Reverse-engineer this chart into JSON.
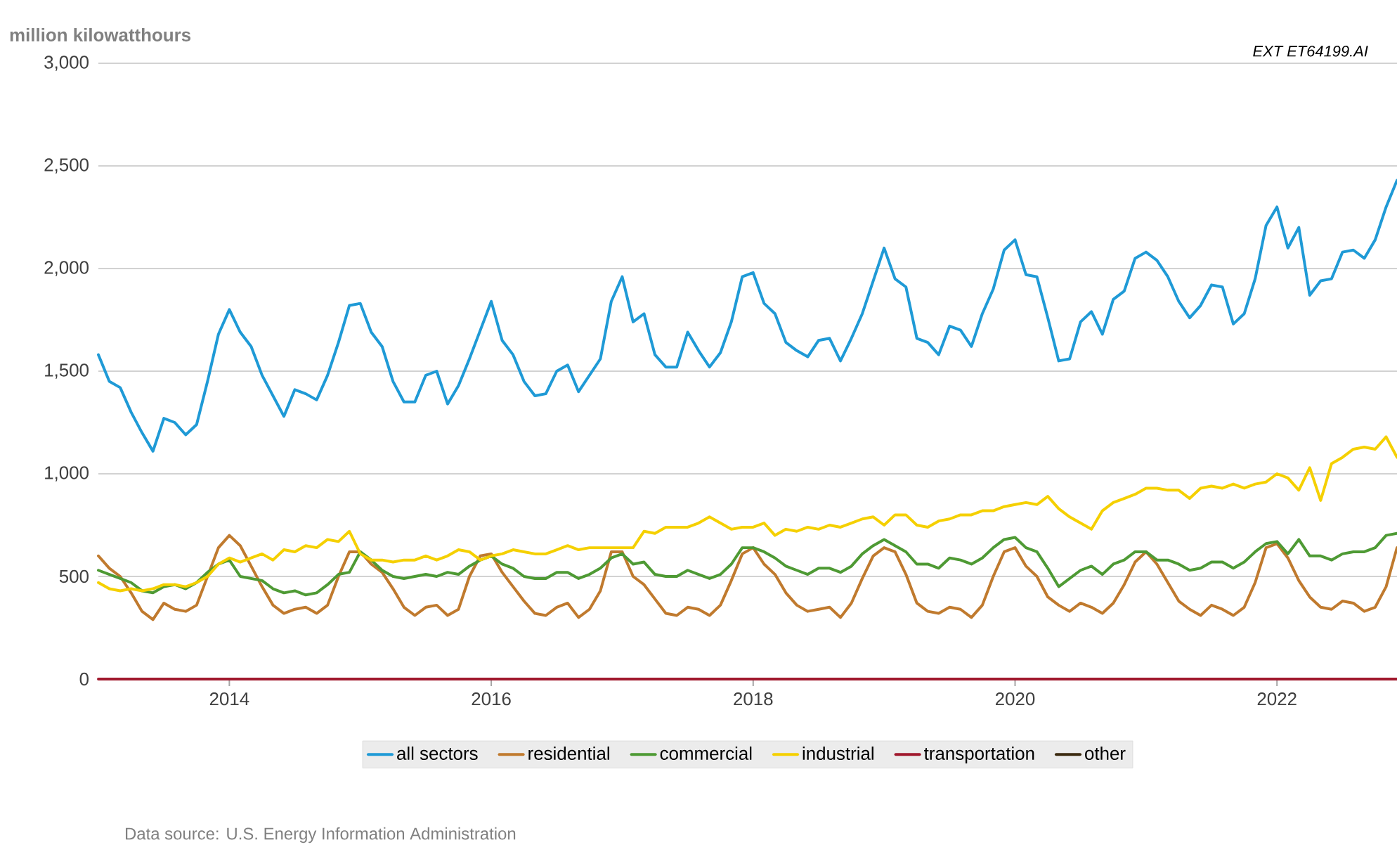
{
  "chart_data": {
    "type": "line",
    "ylabel": "million kilowatthours",
    "annotations": [
      "EXT ET64199.AI",
      "Data source: U.S. Energy Information Administration"
    ],
    "x": [
      "2013-01",
      "2013-02",
      "2013-03",
      "2013-04",
      "2013-05",
      "2013-06",
      "2013-07",
      "2013-08",
      "2013-09",
      "2013-10",
      "2013-11",
      "2013-12",
      "2014-01",
      "2014-02",
      "2014-03",
      "2014-04",
      "2014-05",
      "2014-06",
      "2014-07",
      "2014-08",
      "2014-09",
      "2014-10",
      "2014-11",
      "2014-12",
      "2015-01",
      "2015-02",
      "2015-03",
      "2015-04",
      "2015-05",
      "2015-06",
      "2015-07",
      "2015-08",
      "2015-09",
      "2015-10",
      "2015-11",
      "2015-12",
      "2016-01",
      "2016-02",
      "2016-03",
      "2016-04",
      "2016-05",
      "2016-06",
      "2016-07",
      "2016-08",
      "2016-09",
      "2016-10",
      "2016-11",
      "2016-12",
      "2017-01",
      "2017-02",
      "2017-03",
      "2017-04",
      "2017-05",
      "2017-06",
      "2017-07",
      "2017-08",
      "2017-09",
      "2017-10",
      "2017-11",
      "2017-12",
      "2018-01",
      "2018-02",
      "2018-03",
      "2018-04",
      "2018-05",
      "2018-06",
      "2018-07",
      "2018-08",
      "2018-09",
      "2018-10",
      "2018-11",
      "2018-12",
      "2019-01",
      "2019-02",
      "2019-03",
      "2019-04",
      "2019-05",
      "2019-06",
      "2019-07",
      "2019-08",
      "2019-09",
      "2019-10",
      "2019-11",
      "2019-12",
      "2020-01",
      "2020-02",
      "2020-03",
      "2020-04",
      "2020-05",
      "2020-06",
      "2020-07",
      "2020-08",
      "2020-09",
      "2020-10",
      "2020-11",
      "2020-12",
      "2021-01",
      "2021-02",
      "2021-03",
      "2021-04",
      "2021-05",
      "2021-06",
      "2021-07",
      "2021-08",
      "2021-09",
      "2021-10",
      "2021-11",
      "2021-12",
      "2022-01",
      "2022-02",
      "2022-03",
      "2022-04",
      "2022-05",
      "2022-06",
      "2022-07",
      "2022-08",
      "2022-09",
      "2022-10",
      "2022-11",
      "2022-12"
    ],
    "series": [
      {
        "name": "all sectors",
        "color": "#1f9ad6",
        "values": [
          1580,
          1450,
          1420,
          1300,
          1200,
          1110,
          1270,
          1250,
          1190,
          1240,
          1450,
          1680,
          1800,
          1690,
          1620,
          1480,
          1380,
          1280,
          1410,
          1390,
          1360,
          1480,
          1640,
          1820,
          1830,
          1690,
          1620,
          1450,
          1350,
          1350,
          1480,
          1500,
          1340,
          1430,
          1560,
          1700,
          1840,
          1650,
          1580,
          1450,
          1380,
          1390,
          1500,
          1530,
          1400,
          1480,
          1560,
          1840,
          1960,
          1740,
          1780,
          1580,
          1520,
          1520,
          1690,
          1600,
          1520,
          1590,
          1740,
          1960,
          1980,
          1830,
          1780,
          1640,
          1600,
          1570,
          1650,
          1660,
          1550,
          1660,
          1780,
          1940,
          2100,
          1950,
          1910,
          1660,
          1640,
          1580,
          1720,
          1700,
          1620,
          1780,
          1900,
          2090,
          2140,
          1970,
          1960,
          1760,
          1550,
          1560,
          1740,
          1790,
          1680,
          1850,
          1890,
          2050,
          2080,
          2040,
          1960,
          1840,
          1760,
          1820,
          1920,
          1910,
          1730,
          1780,
          1950,
          2210,
          2300,
          2100,
          2200,
          1870,
          1940,
          1950,
          2080,
          2090,
          2050,
          2140,
          2300,
          2430
        ]
      },
      {
        "name": "residential",
        "color": "#c07a2e",
        "values": [
          600,
          540,
          500,
          420,
          330,
          290,
          370,
          340,
          330,
          360,
          500,
          640,
          700,
          650,
          550,
          450,
          360,
          320,
          340,
          350,
          320,
          360,
          500,
          620,
          620,
          560,
          520,
          440,
          350,
          310,
          350,
          360,
          310,
          340,
          500,
          600,
          610,
          520,
          450,
          380,
          320,
          310,
          350,
          370,
          300,
          340,
          430,
          620,
          620,
          500,
          460,
          390,
          320,
          310,
          350,
          340,
          310,
          360,
          480,
          610,
          640,
          560,
          510,
          420,
          360,
          330,
          340,
          350,
          300,
          370,
          490,
          600,
          640,
          620,
          510,
          370,
          330,
          320,
          350,
          340,
          300,
          360,
          500,
          620,
          640,
          550,
          500,
          400,
          360,
          330,
          370,
          350,
          320,
          370,
          460,
          570,
          620,
          560,
          470,
          380,
          340,
          310,
          360,
          340,
          310,
          350,
          470,
          640,
          660,
          590,
          480,
          400,
          350,
          340,
          380,
          370,
          330,
          350,
          450,
          640
        ]
      },
      {
        "name": "commercial",
        "color": "#4e9a34",
        "values": [
          530,
          510,
          490,
          470,
          430,
          420,
          450,
          460,
          440,
          470,
          520,
          560,
          580,
          500,
          490,
          480,
          440,
          420,
          430,
          410,
          420,
          460,
          510,
          520,
          620,
          580,
          530,
          500,
          490,
          500,
          510,
          500,
          520,
          510,
          550,
          580,
          600,
          560,
          540,
          500,
          490,
          490,
          520,
          520,
          490,
          510,
          540,
          590,
          610,
          560,
          570,
          510,
          500,
          500,
          530,
          510,
          490,
          510,
          560,
          640,
          640,
          620,
          590,
          550,
          530,
          510,
          540,
          540,
          520,
          550,
          610,
          650,
          680,
          650,
          620,
          560,
          560,
          540,
          590,
          580,
          560,
          590,
          640,
          680,
          690,
          640,
          620,
          540,
          450,
          490,
          530,
          550,
          510,
          560,
          580,
          620,
          620,
          580,
          580,
          560,
          530,
          540,
          570,
          570,
          540,
          570,
          620,
          660,
          670,
          610,
          680,
          600,
          600,
          580,
          610,
          620,
          620,
          640,
          700,
          710
        ]
      },
      {
        "name": "industrial",
        "color": "#f5d000",
        "values": [
          470,
          440,
          430,
          440,
          430,
          440,
          460,
          460,
          450,
          470,
          500,
          560,
          590,
          570,
          590,
          610,
          580,
          630,
          620,
          650,
          640,
          680,
          670,
          720,
          610,
          580,
          580,
          570,
          580,
          580,
          600,
          580,
          600,
          630,
          620,
          580,
          600,
          610,
          630,
          620,
          610,
          610,
          630,
          650,
          630,
          640,
          640,
          640,
          640,
          640,
          720,
          710,
          740,
          740,
          740,
          760,
          790,
          760,
          730,
          740,
          740,
          760,
          700,
          730,
          720,
          740,
          730,
          750,
          740,
          760,
          780,
          790,
          750,
          800,
          800,
          750,
          740,
          770,
          780,
          800,
          800,
          820,
          820,
          840,
          850,
          860,
          850,
          890,
          830,
          790,
          760,
          730,
          820,
          860,
          880,
          900,
          930,
          930,
          920,
          920,
          880,
          930,
          940,
          930,
          950,
          930,
          950,
          960,
          1000,
          980,
          920,
          1030,
          870,
          1050,
          1080,
          1120,
          1130,
          1120,
          1180,
          1080
        ]
      },
      {
        "name": "transportation",
        "color": "#a0182d",
        "x": [
          "2013-01",
          "2022-12"
        ],
        "values": [
          0,
          0
        ]
      },
      {
        "name": "other",
        "color": "#3b2a10",
        "values": [
          null,
          null,
          null,
          null,
          null,
          null,
          null,
          null,
          null,
          null,
          null,
          null,
          null,
          null,
          null,
          null,
          null,
          null,
          null,
          null,
          null,
          null,
          null,
          null,
          null,
          null,
          null,
          null,
          null,
          null,
          null,
          null,
          null,
          null,
          null,
          null,
          null,
          null,
          null,
          null,
          null,
          null,
          null,
          null,
          null,
          null,
          null,
          null,
          null,
          null,
          null,
          null,
          null,
          null,
          null,
          null,
          null,
          null,
          null,
          null,
          null,
          null,
          null,
          null,
          null,
          null,
          null,
          null,
          null,
          null,
          null,
          null,
          null,
          null,
          null,
          null,
          null,
          null,
          null,
          null,
          null,
          null,
          null,
          null,
          null,
          null,
          null,
          null,
          null,
          null,
          null,
          null,
          null,
          null,
          null,
          null,
          null,
          null,
          null,
          null,
          null,
          null,
          null,
          null,
          null,
          null,
          null,
          null,
          null,
          null,
          null,
          null,
          null,
          null,
          null,
          null,
          null,
          null,
          null,
          null
        ]
      }
    ],
    "xlim": [
      "2013-01",
      "2022-12"
    ],
    "xticks": [
      "2014",
      "2016",
      "2018",
      "2020",
      "2022"
    ],
    "ylim": [
      0,
      3000
    ],
    "yticks": [
      {
        "value": 0,
        "label": "0"
      },
      {
        "value": 500,
        "label": "500"
      },
      {
        "value": 1000,
        "label": "1,000"
      },
      {
        "value": 1500,
        "label": "1,500"
      },
      {
        "value": 2000,
        "label": "2,000"
      },
      {
        "value": 2500,
        "label": "2,500"
      },
      {
        "value": 3000,
        "label": "3,000"
      }
    ],
    "grid": "y",
    "legend": "bottom",
    "marker": "none",
    "line_style": "solid"
  }
}
